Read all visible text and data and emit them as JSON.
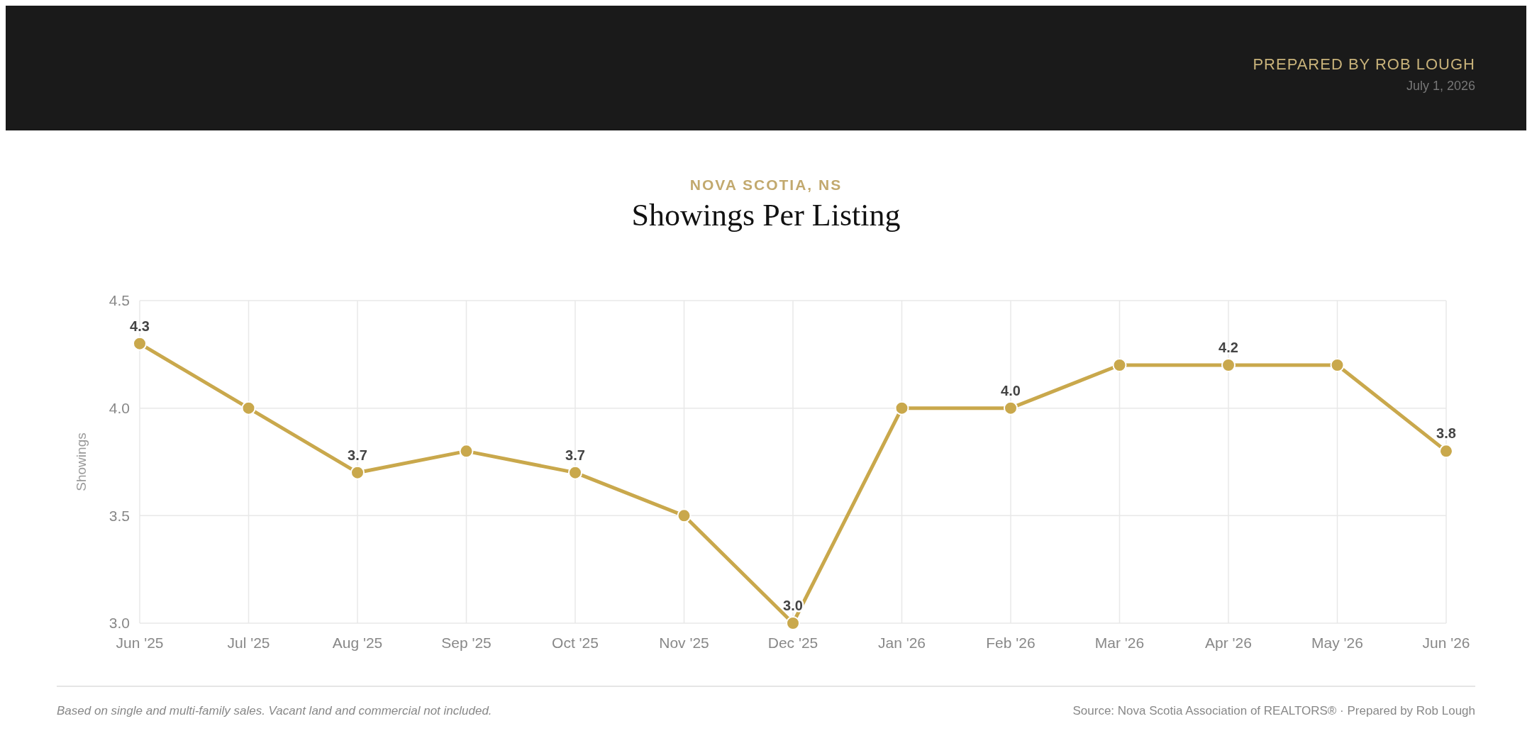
{
  "chart_data": {
    "type": "line",
    "subtitle": "NOVA SCOTIA, NS",
    "title": "Showings Per Listing",
    "ylabel": "Showings",
    "categories": [
      "Jun '25",
      "Jul '25",
      "Aug '25",
      "Sep '25",
      "Oct '25",
      "Nov '25",
      "Dec '25",
      "Jan '26",
      "Feb '26",
      "Mar '26",
      "Apr '26",
      "May '26",
      "Jun '26"
    ],
    "series": [
      {
        "color": "#c9a84c",
        "values": [
          4.3,
          4.0,
          3.7,
          3.8,
          3.7,
          3.5,
          3.0,
          4.0,
          4.0,
          4.2,
          4.2,
          4.2,
          3.8
        ],
        "value_labels": [
          "4.3",
          null,
          "3.7",
          null,
          "3.7",
          null,
          "3.0",
          null,
          "4.0",
          null,
          "4.2",
          null,
          "3.8"
        ]
      }
    ],
    "ylim": [
      3.0,
      4.5
    ],
    "yticks": [
      {
        "value": 3.0,
        "label": "3.0"
      },
      {
        "value": 3.5,
        "label": "3.5"
      },
      {
        "value": 4.0,
        "label": "4.0"
      },
      {
        "value": 4.5,
        "label": "4.5"
      }
    ],
    "grid": true,
    "marker": "circle",
    "line_style": "solid",
    "annotations": [
      "PREPARED BY ROB LOUGH",
      "July 1, 2026",
      "Based on single and multi-family sales. Vacant land and commercial not included.",
      "Source: Nova Scotia Association of REALTORS® · Prepared by Rob Lough"
    ]
  }
}
